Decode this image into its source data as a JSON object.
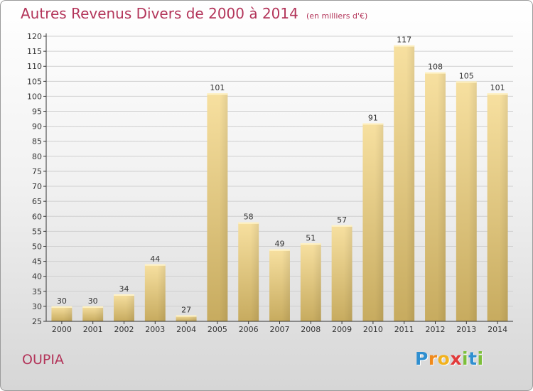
{
  "chart_data": {
    "type": "bar",
    "title": "Autres Revenus Divers de 2000 à 2014",
    "subtitle": "(en milliers d'€)",
    "categories": [
      "2000",
      "2001",
      "2002",
      "2003",
      "2004",
      "2005",
      "2006",
      "2007",
      "2008",
      "2009",
      "2010",
      "2011",
      "2012",
      "2013",
      "2014"
    ],
    "values": [
      30,
      30,
      34,
      44,
      27,
      101,
      58,
      49,
      51,
      57,
      91,
      117,
      108,
      105,
      101
    ],
    "ylim": [
      25,
      120
    ],
    "yticks": [
      25,
      30,
      35,
      40,
      45,
      50,
      55,
      60,
      65,
      70,
      75,
      80,
      85,
      90,
      95,
      100,
      105,
      110,
      115,
      120
    ],
    "grid": true,
    "xlabel": "",
    "ylabel": ""
  },
  "place": "OUPIA",
  "brand": {
    "letters": [
      "P",
      "r",
      "o",
      "x",
      "i",
      "t",
      "i"
    ],
    "colors": [
      "#2f8fd0",
      "#f08a1c",
      "#f2b21e",
      "#e23b3b",
      "#7cbf3a",
      "#2f8fd0",
      "#7cbf3a"
    ]
  },
  "colors": {
    "accent": "#b3355a",
    "bar_light": "#f5dc9a",
    "bar_dark": "#c8ad62",
    "grid": "#cfcfcf",
    "axis": "#333333"
  }
}
